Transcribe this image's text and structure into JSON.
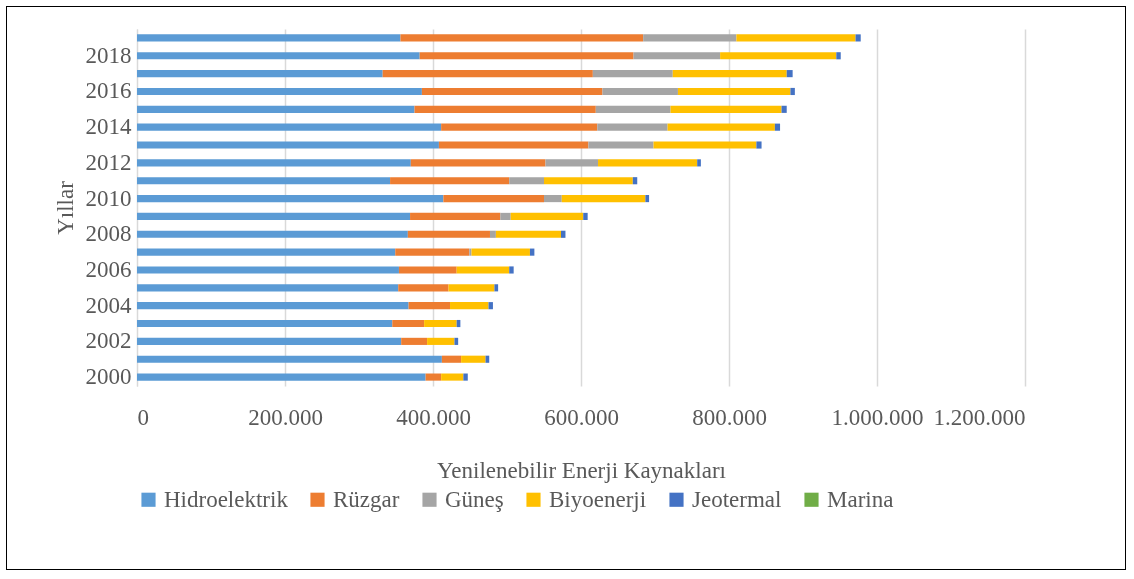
{
  "chart_data": {
    "type": "bar",
    "orientation": "horizontal",
    "stacked": true,
    "xlabel": "Yenilenebilir Enerji Kaynakları",
    "ylabel": "Yıllar",
    "categories": [
      null,
      "2018",
      null,
      "2016",
      null,
      "2014",
      null,
      "2012",
      null,
      "2010",
      null,
      "2008",
      null,
      "2006",
      null,
      "2004",
      null,
      "2002",
      null,
      "2000"
    ],
    "series": [
      {
        "name": "Hidroelektrik",
        "color": "#5b9bd5",
        "values": [
          356000,
          382000,
          332000,
          385000,
          375000,
          411000,
          408000,
          370000,
          342000,
          414000,
          369000,
          366000,
          349000,
          354000,
          353000,
          367000,
          345000,
          357000,
          412000,
          390000
        ]
      },
      {
        "name": "Rüzgar",
        "color": "#ed7d31",
        "values": [
          328000,
          289000,
          284000,
          244000,
          245000,
          211000,
          202000,
          182000,
          161000,
          136000,
          122000,
          111000,
          100000,
          78000,
          68000,
          56000,
          43000,
          35000,
          26000,
          21000
        ]
      },
      {
        "name": "Güneş",
        "color": "#a5a5a5",
        "values": [
          126000,
          117000,
          108000,
          102000,
          101000,
          95000,
          88000,
          71000,
          47000,
          24000,
          14000,
          8000,
          3000,
          null,
          null,
          null,
          0,
          0,
          0,
          0
        ]
      },
      {
        "name": "Biyoenerji",
        "color": "#ffc000",
        "values": [
          161000,
          157000,
          154000,
          152000,
          150000,
          145000,
          139000,
          134000,
          120000,
          113000,
          98000,
          88000,
          79000,
          71000,
          62000,
          52000,
          44000,
          37000,
          33000,
          30000
        ]
      },
      {
        "name": "Jeotermal",
        "color": "#4472c4",
        "values": [
          7000,
          6000,
          8000,
          6000,
          7000,
          7000,
          7000,
          5000,
          6000,
          5000,
          6000,
          6000,
          6000,
          6000,
          5000,
          6000,
          5000,
          5000,
          5000,
          6000
        ]
      },
      {
        "name": "Marina",
        "color": "#70ad47",
        "values": [
          0,
          0,
          0,
          0,
          0,
          0,
          0,
          0,
          0,
          0,
          0,
          0,
          0,
          0,
          0,
          0,
          0,
          0,
          0,
          0
        ]
      }
    ],
    "xlim": [
      0,
      1200000
    ],
    "xticks": [
      0,
      {
        "value": 200000,
        "label": "200.000"
      },
      {
        "value": 400000,
        "label": "400.000"
      },
      {
        "value": 600000,
        "label": "600.000"
      },
      {
        "value": 800000,
        "label": "800.000"
      },
      {
        "value": 1000000,
        "label": "1.000.000"
      },
      {
        "value": 1200000,
        "label": "1.200.000"
      }
    ],
    "grid": "x",
    "legend": "bottom"
  }
}
